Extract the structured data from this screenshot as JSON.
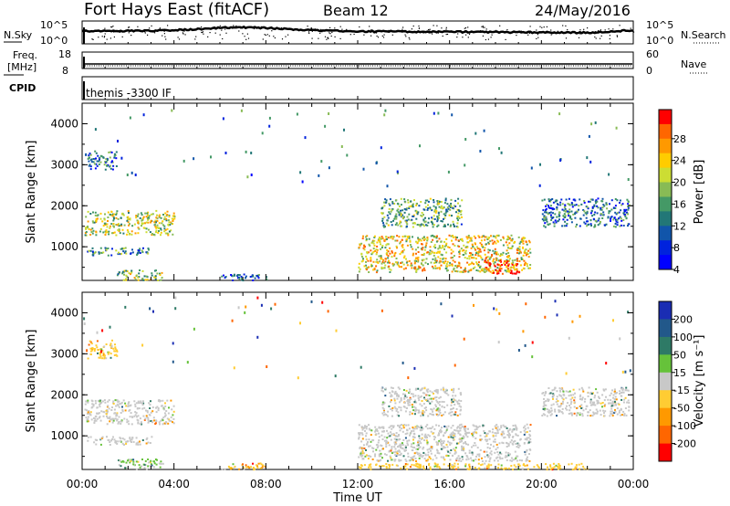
{
  "header": {
    "radar": "Fort Hays East (fitACF)",
    "beam": "Beam 12",
    "date": "24/May/2016"
  },
  "panels": {
    "nsky": {
      "left_label": "N.Sky",
      "left_ticks": [
        "10^5",
        "10^0"
      ],
      "right_ticks": [
        "10^5",
        "10^0"
      ],
      "right_label": "N.Search"
    },
    "freq": {
      "left_label_1": "Freq.",
      "left_label_2": "[MHz]",
      "left_ticks": [
        "18",
        "8"
      ],
      "right_ticks": [
        "60",
        "0"
      ],
      "right_label": "Nave"
    },
    "cpid": {
      "left_label": "CPID",
      "text": "themis -3300 IF"
    }
  },
  "colorbars": {
    "power": {
      "label": "Power [dB]",
      "ticks": [
        "28",
        "24",
        "20",
        "16",
        "12",
        "8",
        "4"
      ],
      "colors": [
        "#ff0000",
        "#ff6600",
        "#ff9900",
        "#ffcc00",
        "#ccdd33",
        "#88bb55",
        "#449966",
        "#227777",
        "#1155aa",
        "#0022dd",
        "#0000ff"
      ]
    },
    "velocity": {
      "label": "Velocity [m s⁻¹]",
      "ticks": [
        "200",
        "100",
        "50",
        "15",
        "-15",
        "-50",
        "-100",
        "-200"
      ],
      "colors": [
        "#1a2db3",
        "#22588a",
        "#2e7a66",
        "#66c23a",
        "#c8c8c8",
        "#ffcc33",
        "#ff9900",
        "#ff6600",
        "#ff0000"
      ]
    }
  },
  "x_axis": {
    "ticks": [
      "00:00",
      "04:00",
      "08:00",
      "12:00",
      "16:00",
      "20:00",
      "00:00"
    ],
    "label": "Time UT"
  },
  "y_axis": {
    "label": "Slant Range [km]",
    "ticks": [
      "1000",
      "2000",
      "3000",
      "4000"
    ]
  },
  "chart_data": [
    {
      "type": "heatmap",
      "title": "Power",
      "ylabel": "Slant Range [km]",
      "xlabel": "Time UT",
      "xlim": [
        0,
        24
      ],
      "ylim": [
        180,
        4500
      ],
      "colorbar_label": "Power [dB]",
      "colorbar_ticks": [
        4,
        8,
        12,
        16,
        20,
        24,
        28
      ],
      "echo_regions": [
        {
          "t_start": 0.1,
          "t_end": 4.0,
          "range_start": 1300,
          "range_end": 1900,
          "power_db": 18
        },
        {
          "t_start": 0.2,
          "t_end": 1.5,
          "range_start": 2900,
          "range_end": 3350,
          "power_db": 10
        },
        {
          "t_start": 0.2,
          "t_end": 3.0,
          "range_start": 800,
          "range_end": 1000,
          "power_db": 12
        },
        {
          "t_start": 1.5,
          "t_end": 3.5,
          "range_start": 200,
          "range_end": 450,
          "power_db": 16
        },
        {
          "t_start": 6.0,
          "t_end": 8.0,
          "range_start": 200,
          "range_end": 350,
          "power_db": 8
        },
        {
          "t_start": 12.0,
          "t_end": 19.5,
          "range_start": 400,
          "range_end": 1300,
          "power_db": 20
        },
        {
          "t_start": 13.0,
          "t_end": 16.5,
          "range_start": 1500,
          "range_end": 2200,
          "power_db": 14
        },
        {
          "t_start": 17.5,
          "t_end": 19.0,
          "range_start": 350,
          "range_end": 700,
          "power_db": 28
        },
        {
          "t_start": 20.0,
          "t_end": 23.8,
          "range_start": 1500,
          "range_end": 2200,
          "power_db": 10
        }
      ]
    },
    {
      "type": "heatmap",
      "title": "Velocity",
      "ylabel": "Slant Range [km]",
      "xlabel": "Time UT",
      "xlim": [
        0,
        24
      ],
      "ylim": [
        180,
        4500
      ],
      "colorbar_label": "Velocity [m s⁻¹]",
      "colorbar_ticks": [
        -200,
        -100,
        -50,
        -15,
        15,
        50,
        100,
        200
      ],
      "echo_regions": [
        {
          "t_start": 0.1,
          "t_end": 4.0,
          "range_start": 1300,
          "range_end": 1900,
          "velocity": 0
        },
        {
          "t_start": 0.2,
          "t_end": 1.5,
          "range_start": 2900,
          "range_end": 3350,
          "velocity": -40
        },
        {
          "t_start": 0.2,
          "t_end": 3.0,
          "range_start": 800,
          "range_end": 1000,
          "velocity": 0
        },
        {
          "t_start": 1.5,
          "t_end": 3.5,
          "range_start": 200,
          "range_end": 450,
          "velocity": 30
        },
        {
          "t_start": 6.0,
          "t_end": 8.0,
          "range_start": 200,
          "range_end": 350,
          "velocity": -80
        },
        {
          "t_start": 12.0,
          "t_end": 19.5,
          "range_start": 400,
          "range_end": 1300,
          "velocity": 0
        },
        {
          "t_start": 12.0,
          "t_end": 22.0,
          "range_start": 200,
          "range_end": 350,
          "velocity": -70
        },
        {
          "t_start": 13.0,
          "t_end": 16.5,
          "range_start": 1500,
          "range_end": 2200,
          "velocity": 0
        },
        {
          "t_start": 20.0,
          "t_end": 23.8,
          "range_start": 1500,
          "range_end": 2200,
          "velocity": 0
        }
      ]
    }
  ]
}
